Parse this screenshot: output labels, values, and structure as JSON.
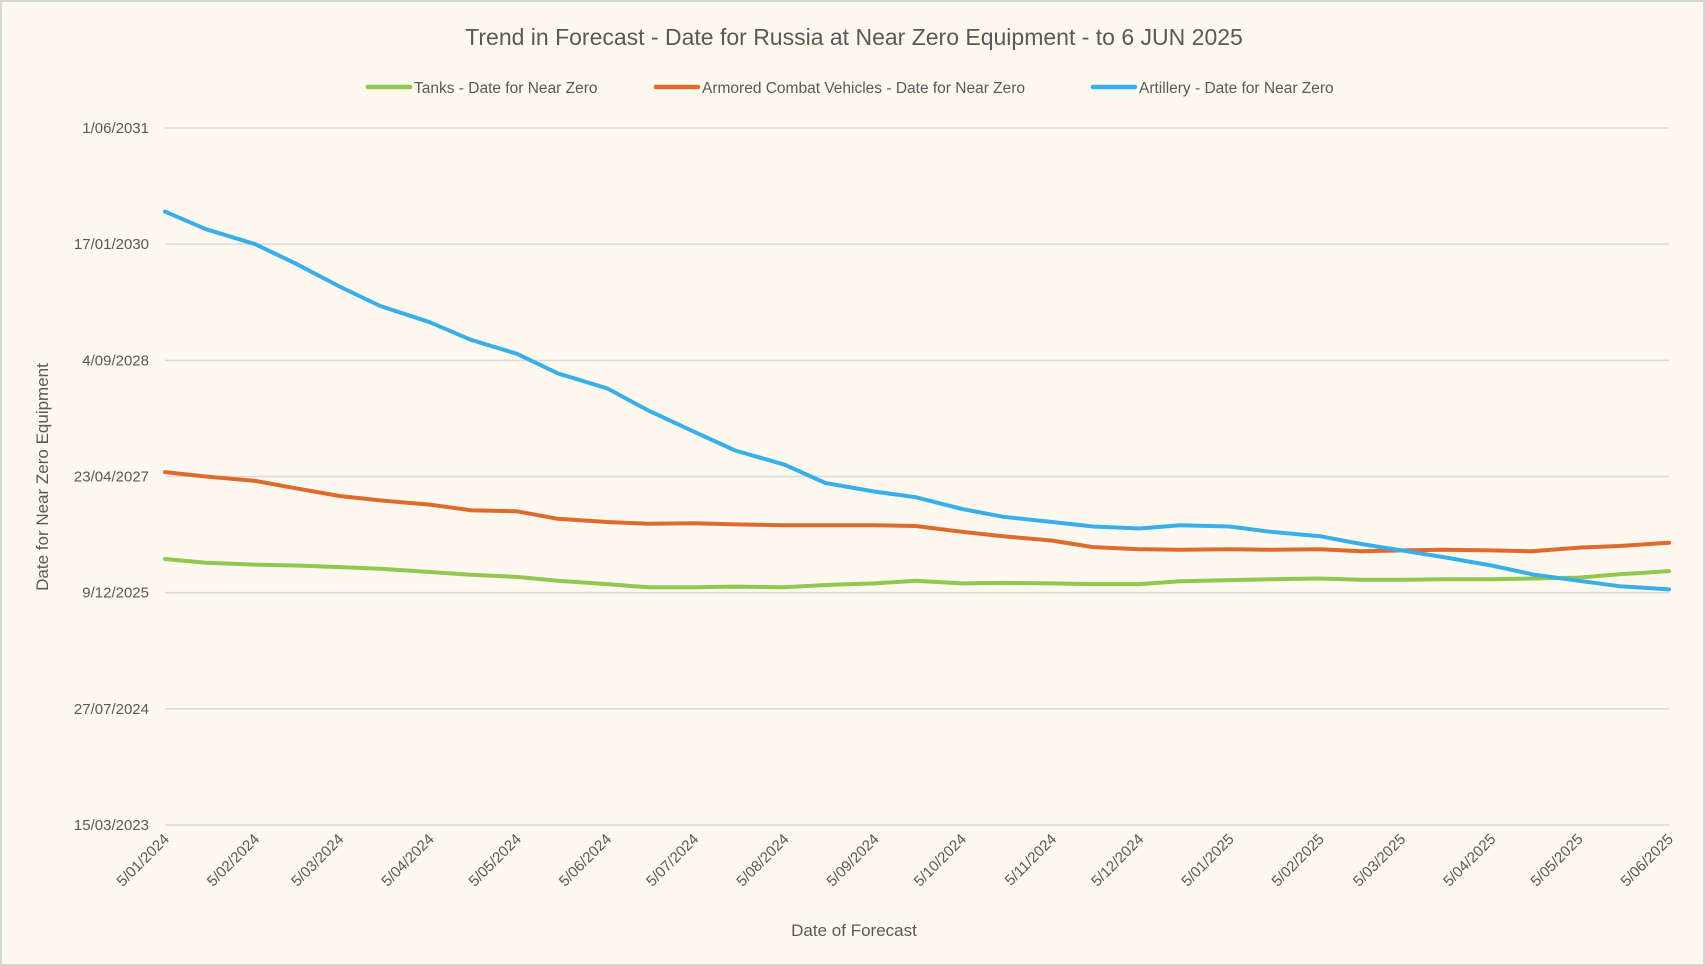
{
  "chart_data": {
    "type": "line",
    "title": "Trend in Forecast - Date for Russia at Near Zero Equipment - to 6 JUN 2025",
    "xlabel": "Date of Forecast",
    "ylabel": "Date for Near Zero Equipment",
    "xlim": [
      "2024-01-05",
      "2025-06-05"
    ],
    "ylim": [
      "2023-03-15",
      "2031-06-01"
    ],
    "x_ticks": [
      {
        "value": "2024-01-05",
        "label": "5/01/2024"
      },
      {
        "value": "2024-02-05",
        "label": "5/02/2024"
      },
      {
        "value": "2024-03-05",
        "label": "5/03/2024"
      },
      {
        "value": "2024-04-05",
        "label": "5/04/2024"
      },
      {
        "value": "2024-05-05",
        "label": "5/05/2024"
      },
      {
        "value": "2024-06-05",
        "label": "5/06/2024"
      },
      {
        "value": "2024-07-05",
        "label": "5/07/2024"
      },
      {
        "value": "2024-08-05",
        "label": "5/08/2024"
      },
      {
        "value": "2024-09-05",
        "label": "5/09/2024"
      },
      {
        "value": "2024-10-05",
        "label": "5/10/2024"
      },
      {
        "value": "2024-11-05",
        "label": "5/11/2024"
      },
      {
        "value": "2024-12-05",
        "label": "5/12/2024"
      },
      {
        "value": "2025-01-05",
        "label": "5/01/2025"
      },
      {
        "value": "2025-02-05",
        "label": "5/02/2025"
      },
      {
        "value": "2025-03-05",
        "label": "5/03/2025"
      },
      {
        "value": "2025-04-05",
        "label": "5/04/2025"
      },
      {
        "value": "2025-05-05",
        "label": "5/05/2025"
      },
      {
        "value": "2025-06-05",
        "label": "5/06/2025"
      }
    ],
    "y_ticks": [
      {
        "value": "2023-03-15",
        "label": "15/03/2023"
      },
      {
        "value": "2024-07-27",
        "label": "27/07/2024"
      },
      {
        "value": "2025-12-09",
        "label": "9/12/2025"
      },
      {
        "value": "2027-04-23",
        "label": "23/04/2027"
      },
      {
        "value": "2028-09-04",
        "label": "4/09/2028"
      },
      {
        "value": "2030-01-17",
        "label": "17/01/2030"
      },
      {
        "value": "2031-06-01",
        "label": "1/06/2031"
      }
    ],
    "grid": "horizontal",
    "legend_position": "top",
    "x": [
      "2024-01-05",
      "2024-01-19",
      "2024-02-05",
      "2024-02-19",
      "2024-03-05",
      "2024-03-19",
      "2024-04-05",
      "2024-04-19",
      "2024-05-05",
      "2024-05-19",
      "2024-06-05",
      "2024-06-19",
      "2024-07-05",
      "2024-07-19",
      "2024-08-05",
      "2024-08-19",
      "2024-09-05",
      "2024-09-19",
      "2024-10-05",
      "2024-10-19",
      "2024-11-05",
      "2024-11-19",
      "2024-12-05",
      "2024-12-19",
      "2025-01-05",
      "2025-01-19",
      "2025-02-05",
      "2025-02-19",
      "2025-03-05",
      "2025-03-19",
      "2025-04-05",
      "2025-04-19",
      "2025-05-05",
      "2025-05-19",
      "2025-06-05"
    ],
    "series": [
      {
        "name": "Tanks - Date for Near Zero",
        "color": "#92c84f",
        "values": [
          "2026-05-03",
          "2026-04-17",
          "2026-04-09",
          "2026-04-05",
          "2026-03-29",
          "2026-03-22",
          "2026-03-08",
          "2026-02-24",
          "2026-02-15",
          "2026-01-29",
          "2026-01-15",
          "2026-01-01",
          "2026-01-01",
          "2026-01-04",
          "2026-01-01",
          "2026-01-11",
          "2026-01-18",
          "2026-01-29",
          "2026-01-18",
          "2026-01-20",
          "2026-01-18",
          "2026-01-15",
          "2026-01-15",
          "2026-01-27",
          "2026-02-01",
          "2026-02-05",
          "2026-02-08",
          "2026-02-03",
          "2026-02-03",
          "2026-02-05",
          "2026-02-05",
          "2026-02-08",
          "2026-02-12",
          "2026-02-26",
          "2026-03-12"
        ]
      },
      {
        "name": "Armored Combat Vehicles - Date for Near Zero",
        "color": "#e0692c",
        "values": [
          "2027-05-12",
          "2027-04-23",
          "2027-04-04",
          "2027-03-03",
          "2027-01-29",
          "2027-01-10",
          "2026-12-23",
          "2026-11-29",
          "2026-11-24",
          "2026-10-23",
          "2026-10-09",
          "2026-10-02",
          "2026-10-04",
          "2026-09-29",
          "2026-09-25",
          "2026-09-25",
          "2026-09-25",
          "2026-09-22",
          "2026-08-28",
          "2026-08-09",
          "2026-07-21",
          "2026-06-23",
          "2026-06-14",
          "2026-06-12",
          "2026-06-14",
          "2026-06-12",
          "2026-06-14",
          "2026-06-05",
          "2026-06-09",
          "2026-06-12",
          "2026-06-09",
          "2026-06-05",
          "2026-06-21",
          "2026-06-28",
          "2026-07-12"
        ]
      },
      {
        "name": "Artillery - Date for Near Zero",
        "color": "#3aaeea",
        "values": [
          "2030-06-06",
          "2030-03-23",
          "2030-01-17",
          "2029-10-25",
          "2029-07-19",
          "2029-04-26",
          "2029-02-15",
          "2028-12-02",
          "2028-10-02",
          "2028-07-10",
          "2028-05-06",
          "2028-02-02",
          "2027-11-01",
          "2027-08-13",
          "2027-06-13",
          "2027-03-26",
          "2027-02-17",
          "2027-01-24",
          "2026-12-04",
          "2026-11-01",
          "2026-10-09",
          "2026-09-20",
          "2026-09-11",
          "2026-09-25",
          "2026-09-20",
          "2026-08-28",
          "2026-08-09",
          "2026-07-07",
          "2026-06-09",
          "2026-05-12",
          "2026-04-05",
          "2026-02-26",
          "2026-01-29",
          "2026-01-06",
          "2025-12-23"
        ]
      }
    ]
  }
}
